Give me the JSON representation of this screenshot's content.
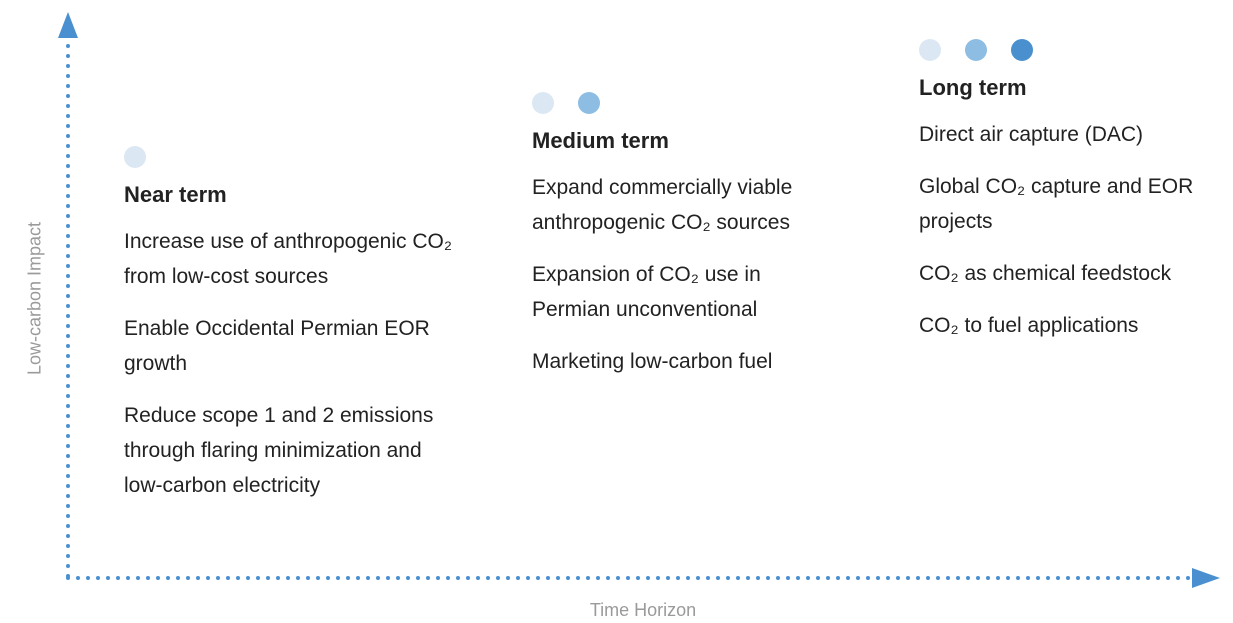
{
  "axes": {
    "y_label": "Low-carbon Impact",
    "x_label": "Time Horizon"
  },
  "columns": [
    {
      "title": "Near term",
      "items": [
        "Increase use of anthropogenic CO₂ from low-cost sources",
        "Enable Occidental Permian EOR growth",
        "Reduce scope 1 and 2 emissions through flaring minimization and low-carbon electricity"
      ]
    },
    {
      "title": "Medium term",
      "items": [
        "Expand commercially viable anthropogenic CO₂ sources",
        "Expansion of CO₂ use in Permian unconventional",
        "Marketing low-carbon fuel"
      ]
    },
    {
      "title": "Long term",
      "items": [
        "Direct air capture (DAC)",
        "Global CO₂ capture and EOR projects",
        "CO₂ as chemical feedstock",
        "CO₂ to fuel applications"
      ]
    }
  ]
}
